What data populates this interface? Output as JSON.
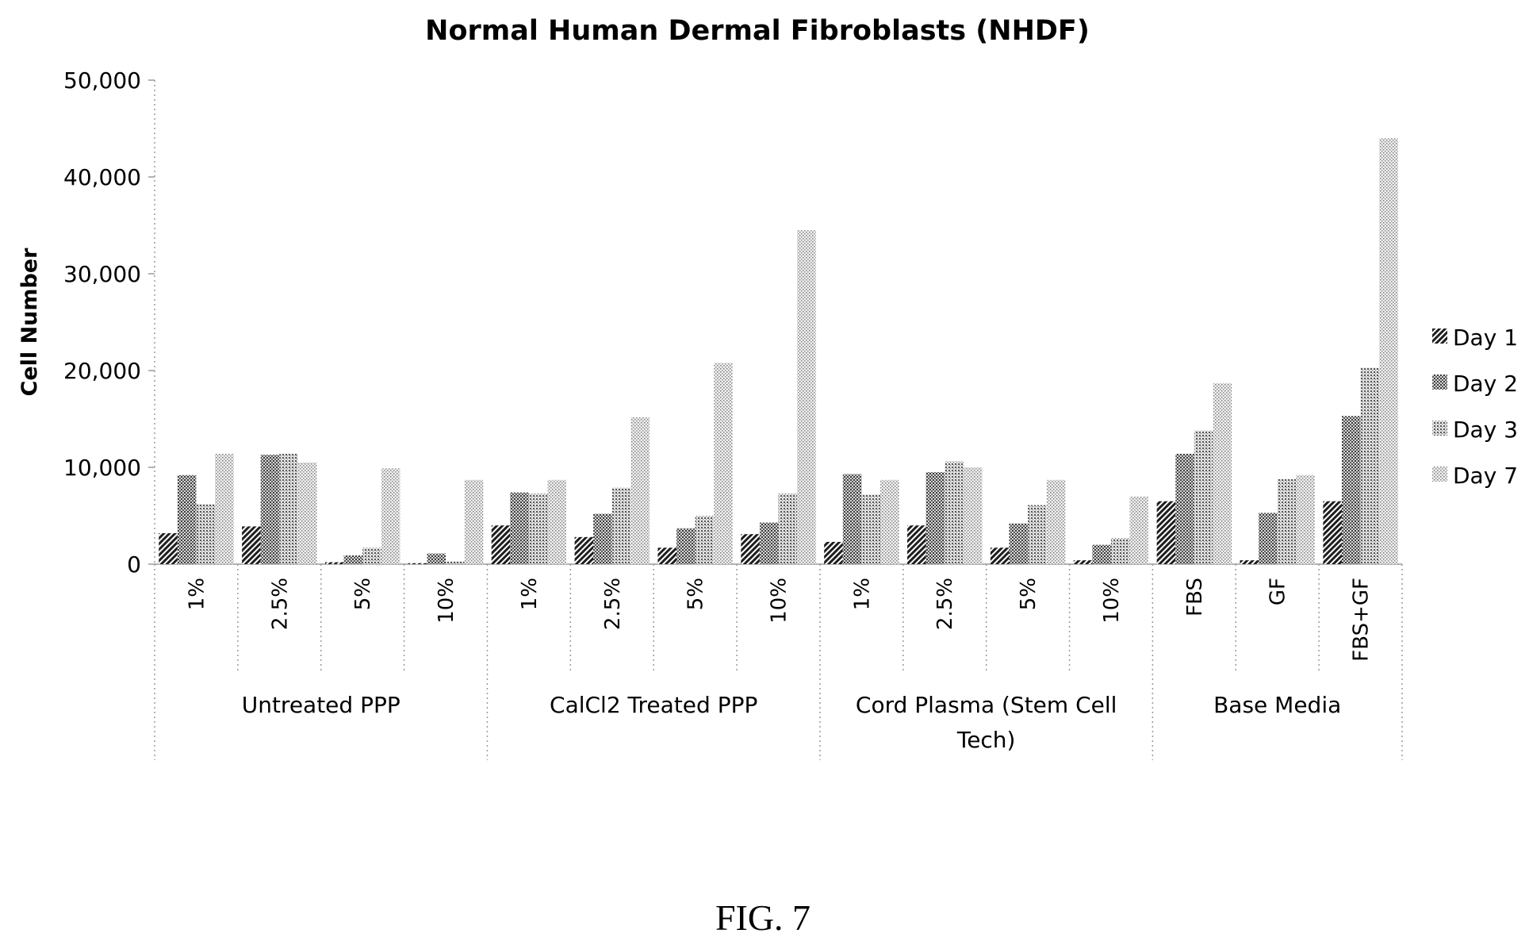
{
  "chart_data": {
    "type": "bar",
    "title": "Normal Human Dermal Fibroblasts (NHDF)",
    "xlabel": "",
    "ylabel": "Cell Number",
    "ylim": [
      0,
      50000
    ],
    "yticks": [
      0,
      10000,
      20000,
      30000,
      40000,
      50000
    ],
    "ytick_labels": [
      "0",
      "10,000",
      "20,000",
      "30,000",
      "40,000",
      "50,000"
    ],
    "categories": [
      "1%",
      "2.5%",
      "5%",
      "10%",
      "1%",
      "2.5%",
      "5%",
      "10%",
      "1%",
      "2.5%",
      "5%",
      "10%",
      "FBS",
      "GF",
      "FBS+GF"
    ],
    "groups": [
      {
        "label": "Untreated PPP",
        "span": 4
      },
      {
        "label": "CalCl2 Treated PPP",
        "span": 4
      },
      {
        "label": "Cord Plasma (Stem Cell Tech)",
        "lines": [
          "Cord Plasma (Stem Cell",
          "Tech)"
        ],
        "span": 4
      },
      {
        "label": "Base  Media",
        "span": 3
      }
    ],
    "series": [
      {
        "name": "Day 1",
        "values": [
          3200,
          3900,
          200,
          100,
          4000,
          2800,
          1700,
          3100,
          2300,
          4000,
          1700,
          400,
          6500,
          400,
          6500
        ]
      },
      {
        "name": "Day 2",
        "values": [
          9200,
          11300,
          900,
          1100,
          7400,
          5200,
          3700,
          4300,
          9300,
          9500,
          4200,
          2000,
          11400,
          5300,
          15300
        ]
      },
      {
        "name": "Day 3",
        "values": [
          6200,
          11400,
          1700,
          300,
          7300,
          7900,
          5000,
          7300,
          7200,
          10600,
          6100,
          2700,
          13800,
          8800,
          20300
        ]
      },
      {
        "name": "Day 7",
        "values": [
          11400,
          10500,
          9900,
          8700,
          8700,
          15200,
          20800,
          34500,
          8700,
          10000,
          8700,
          7000,
          18700,
          9200,
          44000
        ]
      }
    ],
    "legend_position": "right",
    "grid": false
  },
  "figure_caption": "FIG. 7"
}
